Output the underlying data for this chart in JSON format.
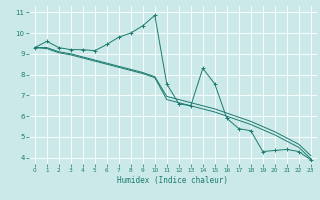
{
  "xlabel": "Humidex (Indice chaleur)",
  "bg_color": "#cce9e9",
  "grid_color": "#b8d8d8",
  "line_color": "#1a7a6e",
  "xlim": [
    -0.5,
    23.5
  ],
  "ylim": [
    3.7,
    11.3
  ],
  "xticks": [
    0,
    1,
    2,
    3,
    4,
    5,
    6,
    7,
    8,
    9,
    10,
    11,
    12,
    13,
    14,
    15,
    16,
    17,
    18,
    19,
    20,
    21,
    22,
    23
  ],
  "yticks": [
    4,
    5,
    6,
    7,
    8,
    9,
    10,
    11
  ],
  "series1_x": [
    0,
    1,
    2,
    3,
    4,
    5,
    6,
    7,
    8,
    9,
    10,
    11,
    12,
    13,
    14,
    15,
    16,
    17,
    18,
    19,
    20,
    21,
    22,
    23
  ],
  "series1_y": [
    9.3,
    9.6,
    9.3,
    9.2,
    9.2,
    9.15,
    9.45,
    9.8,
    10.0,
    10.35,
    10.85,
    7.55,
    6.6,
    6.5,
    8.3,
    7.55,
    5.9,
    5.4,
    5.3,
    4.3,
    4.35,
    4.4,
    4.3,
    3.9
  ],
  "series2_x": [
    0,
    1,
    2,
    3,
    4,
    5,
    6,
    7,
    8,
    9,
    10,
    11,
    12,
    13,
    14,
    15,
    16,
    17,
    18,
    19,
    20,
    21,
    22,
    23
  ],
  "series2_y": [
    9.3,
    9.3,
    9.1,
    9.0,
    8.85,
    8.7,
    8.55,
    8.4,
    8.25,
    8.1,
    7.9,
    6.95,
    6.8,
    6.65,
    6.5,
    6.35,
    6.15,
    5.95,
    5.75,
    5.5,
    5.25,
    4.95,
    4.65,
    4.1
  ],
  "series3_x": [
    0,
    1,
    2,
    3,
    4,
    5,
    6,
    7,
    8,
    9,
    10,
    11,
    12,
    13,
    14,
    15,
    16,
    17,
    18,
    19,
    20,
    21,
    22,
    23
  ],
  "series3_y": [
    9.3,
    9.25,
    9.05,
    8.95,
    8.8,
    8.65,
    8.5,
    8.35,
    8.2,
    8.05,
    7.85,
    6.8,
    6.65,
    6.5,
    6.35,
    6.2,
    6.0,
    5.8,
    5.6,
    5.35,
    5.1,
    4.8,
    4.5,
    3.95
  ]
}
